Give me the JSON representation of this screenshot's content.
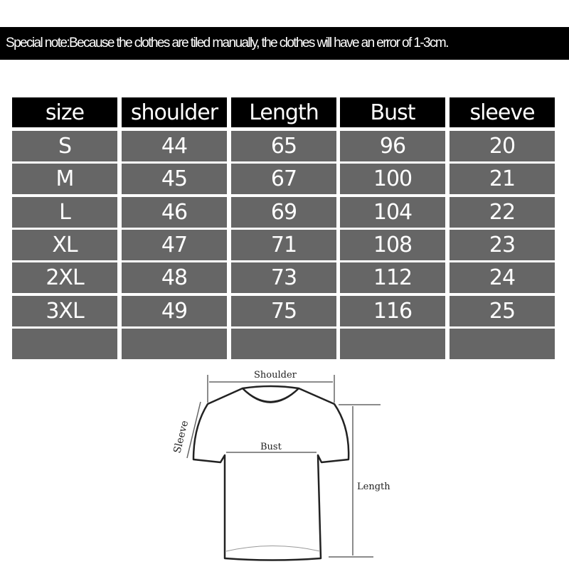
{
  "note": "Special note:Because the clothes are tiled manually, the clothes will have an error of 1-3cm.",
  "table": {
    "headers": [
      "size",
      "shoulder",
      "Length",
      "Bust",
      "sleeve"
    ],
    "rows": [
      [
        "S",
        "44",
        "65",
        "96",
        "20"
      ],
      [
        "M",
        "45",
        "67",
        "100",
        "21"
      ],
      [
        "L",
        "46",
        "69",
        "104",
        "22"
      ],
      [
        "XL",
        "47",
        "71",
        "108",
        "23"
      ],
      [
        "2XL",
        "48",
        "73",
        "112",
        "24"
      ],
      [
        "3XL",
        "49",
        "75",
        "116",
        "25"
      ],
      [
        "",
        "",
        "",
        "",
        ""
      ]
    ]
  },
  "diagram": {
    "shoulder_label": "Shoulder",
    "sleeve_label": "Sleeve",
    "bust_label": "Bust",
    "length_label": "Length"
  },
  "colors": {
    "header_bg": "#000000",
    "row_bg": "#666666",
    "text": "#ffffff"
  }
}
